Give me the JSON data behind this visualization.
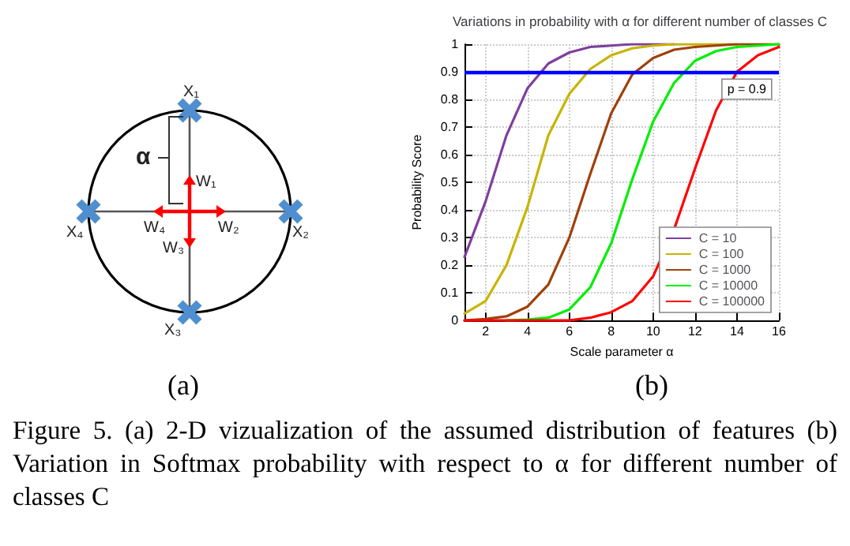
{
  "chart_data": [
    {
      "type": "other",
      "title": "(a)",
      "annotations": [
        "X₁",
        "X₂",
        "X₃",
        "X₄",
        "W₁",
        "W₂",
        "W₃",
        "W₄",
        "α"
      ]
    },
    {
      "type": "line",
      "title": "Variations in probability with α for different number of classes C",
      "xlabel": "Scale parameter α",
      "ylabel": "Probability Score",
      "annotations": [
        "(b)",
        "Figure 5. (a) 2-D vizualization of the assumed distribution of features (b) Variation in Softmax probability with respect to α for different number of classes C"
      ],
      "x": [
        1,
        2,
        3,
        4,
        5,
        6,
        7,
        8,
        9,
        10,
        11,
        12,
        13,
        14,
        15,
        16
      ],
      "series": [
        {
          "name": "C = 10",
          "color": "#7e3f9e",
          "values": [
            0.23,
            0.43,
            0.67,
            0.84,
            0.93,
            0.97,
            0.99,
            0.995,
            1,
            1,
            1,
            null,
            null,
            null,
            null,
            null
          ]
        },
        {
          "name": "C = 100",
          "color": "#c8b400",
          "values": [
            0.025,
            0.07,
            0.2,
            0.41,
            0.67,
            0.82,
            0.91,
            0.96,
            0.985,
            0.995,
            1,
            1,
            1,
            1,
            null,
            null
          ]
        },
        {
          "name": "C = 1000",
          "color": "#a0400a",
          "values": [
            0,
            0.005,
            0.015,
            0.05,
            0.13,
            0.3,
            0.53,
            0.75,
            0.89,
            0.95,
            0.98,
            0.99,
            0.995,
            1,
            1,
            1
          ]
        },
        {
          "name": "C = 10000",
          "color": "#00ee00",
          "values": [
            null,
            null,
            0,
            0.003,
            0.01,
            0.04,
            0.12,
            0.28,
            0.51,
            0.72,
            0.86,
            0.94,
            0.975,
            0.99,
            0.995,
            1
          ]
        },
        {
          "name": "C = 100000",
          "color": "#ff0000",
          "values": [
            0,
            0,
            0,
            0,
            0,
            0,
            0.01,
            0.03,
            0.07,
            0.16,
            0.33,
            0.55,
            0.76,
            0.9,
            0.96,
            0.99
          ]
        }
      ],
      "xlim": [
        1,
        16
      ],
      "xticks": [
        2,
        4,
        6,
        8,
        10,
        12,
        14,
        16
      ],
      "ylim": [
        0,
        1
      ],
      "yticks": [
        0,
        0.1,
        0.2,
        0.3,
        0.4,
        0.5,
        0.6,
        0.7,
        0.8,
        0.9,
        1
      ],
      "ref_lines": [
        {
          "axis": "y",
          "value": 0.9,
          "label": "p = 0.9",
          "color": "#0000ff"
        }
      ],
      "grid": true,
      "legend": "bottom right",
      "marker": "none",
      "line_style": "solid"
    }
  ]
}
